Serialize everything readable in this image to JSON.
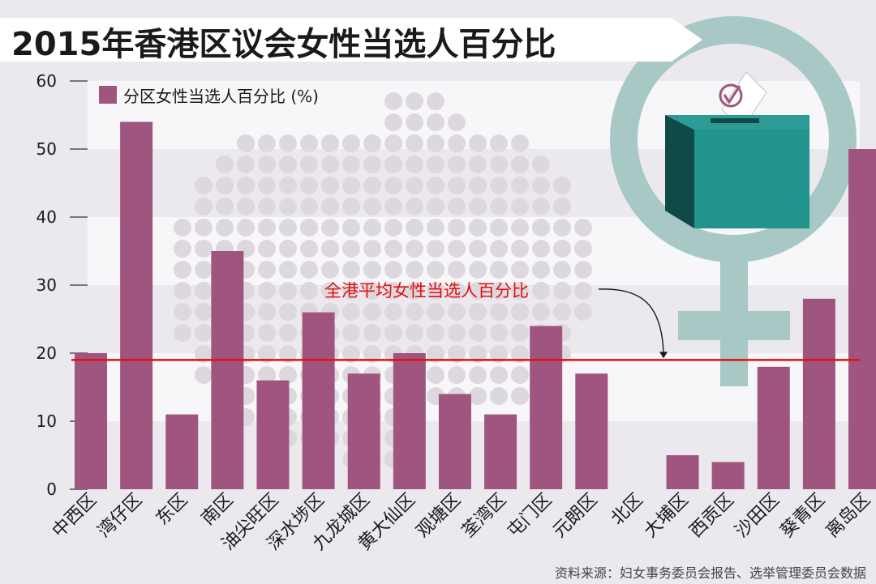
{
  "chart_data": {
    "type": "bar",
    "title": "2015年香港区议会女性当选人百分比",
    "legend": {
      "label": "分区女性当选人百分比 (%)",
      "placement": "top-left"
    },
    "ylim": [
      0,
      60
    ],
    "yticks": [
      0,
      10,
      20,
      30,
      40,
      50,
      60
    ],
    "grid": true,
    "categories": [
      "中西区",
      "湾仔区",
      "东区",
      "南区",
      "油尖旺区",
      "深水埗区",
      "九龙城区",
      "黄大仙区",
      "观塘区",
      "荃湾区",
      "屯门区",
      "元朗区",
      "北区",
      "大埔区",
      "西贡区",
      "沙田区",
      "葵青区",
      "离岛区"
    ],
    "series": [
      {
        "name": "分区女性当选人百分比 (%)",
        "values": [
          20,
          54,
          11,
          35,
          16,
          26,
          17,
          20,
          14,
          11,
          24,
          17,
          0,
          5,
          4,
          18,
          28,
          50
        ]
      }
    ],
    "reference_line": {
      "value": 19,
      "label": "全港平均女性当选人百分比"
    },
    "source": "资料来源：妇女事务委员会报告、选举管理委员会数据"
  },
  "colors": {
    "bar": "#a05580",
    "reference_line": "#e01010",
    "reference_label": "#e01010",
    "background": "#ebe9ee",
    "band": "#f7f6f8",
    "dots": "#dcd8de",
    "female_symbol": "#a8c8c6",
    "box_front": "#21948e",
    "box_side": "#0f4a47",
    "box_top": "#2c9b95",
    "title_band": "#ffffff"
  },
  "decoration": {
    "female_symbol_icon": "female-symbol-icon",
    "ballot_box_icon": "ballot-box-icon",
    "ballot_paper_icon": "ballot-check-icon"
  }
}
